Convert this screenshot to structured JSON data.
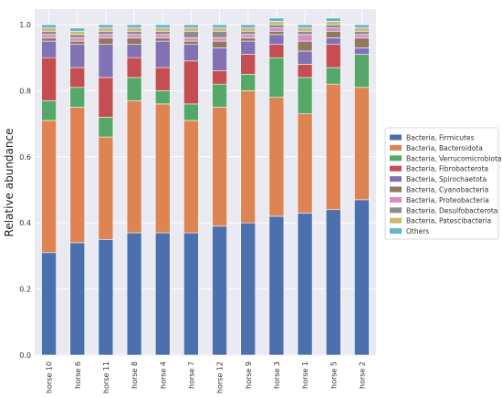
{
  "chart_data": {
    "type": "bar",
    "stacked": true,
    "ylabel": "Relative abundance",
    "xlabel": "",
    "ylim": [
      0,
      1.0
    ],
    "yticks": [
      "0.0",
      "0.2",
      "0.4",
      "0.6",
      "0.8",
      "1.0"
    ],
    "grid": true,
    "legend_position": "right",
    "categories": [
      "horse 10",
      "horse 6",
      "horse 11",
      "horse 8",
      "horse 4",
      "horse 7",
      "horse 12",
      "horse 9",
      "horse 3",
      "horse 1",
      "horse 5",
      "horse 2"
    ],
    "series": [
      {
        "name": "Bacteria, Firmicutes",
        "color": "#4c6fad",
        "values": [
          0.31,
          0.34,
          0.35,
          0.37,
          0.37,
          0.37,
          0.39,
          0.4,
          0.42,
          0.43,
          0.44,
          0.47
        ]
      },
      {
        "name": "Bacteria, Bacteroidota",
        "color": "#dd8452",
        "values": [
          0.4,
          0.41,
          0.31,
          0.4,
          0.39,
          0.34,
          0.36,
          0.4,
          0.36,
          0.3,
          0.38,
          0.34
        ]
      },
      {
        "name": "Bacteria, Verrucomicrobiota",
        "color": "#55a868",
        "values": [
          0.06,
          0.06,
          0.06,
          0.07,
          0.04,
          0.05,
          0.07,
          0.05,
          0.12,
          0.11,
          0.05,
          0.1
        ]
      },
      {
        "name": "Bacteria, Fibrobacterota",
        "color": "#c44e52",
        "values": [
          0.13,
          0.06,
          0.12,
          0.06,
          0.07,
          0.13,
          0.04,
          0.06,
          0.04,
          0.04,
          0.07,
          0.0
        ]
      },
      {
        "name": "Bacteria, Spirochaetota",
        "color": "#8172b3",
        "values": [
          0.05,
          0.07,
          0.1,
          0.04,
          0.08,
          0.05,
          0.07,
          0.04,
          0.03,
          0.04,
          0.02,
          0.02
        ]
      },
      {
        "name": "Bacteria, Cyanobacteria",
        "color": "#937860",
        "values": [
          0.01,
          0.01,
          0.02,
          0.02,
          0.01,
          0.01,
          0.02,
          0.01,
          0.01,
          0.03,
          0.02,
          0.03
        ]
      },
      {
        "name": "Bacteria, Proteobacteria",
        "color": "#da8bc3",
        "values": [
          0.01,
          0.01,
          0.01,
          0.01,
          0.01,
          0.01,
          0.01,
          0.01,
          0.01,
          0.02,
          0.01,
          0.01
        ]
      },
      {
        "name": "Bacteria, Desulfobacterota",
        "color": "#8c8c8c",
        "values": [
          0.01,
          0.01,
          0.01,
          0.01,
          0.01,
          0.02,
          0.02,
          0.01,
          0.01,
          0.01,
          0.01,
          0.01
        ]
      },
      {
        "name": "Bacteria, Patescibacteria",
        "color": "#ccb974",
        "values": [
          0.01,
          0.01,
          0.01,
          0.01,
          0.01,
          0.01,
          0.01,
          0.01,
          0.01,
          0.01,
          0.01,
          0.01
        ]
      },
      {
        "name": "Others",
        "color": "#64b5cd",
        "values": [
          0.01,
          0.01,
          0.01,
          0.01,
          0.01,
          0.01,
          0.01,
          0.01,
          0.01,
          0.01,
          0.01,
          0.01
        ]
      }
    ]
  },
  "colors": {
    "plot_background": "#eaeaf2",
    "grid": "#ffffff",
    "legend_border": "#cccccc"
  }
}
